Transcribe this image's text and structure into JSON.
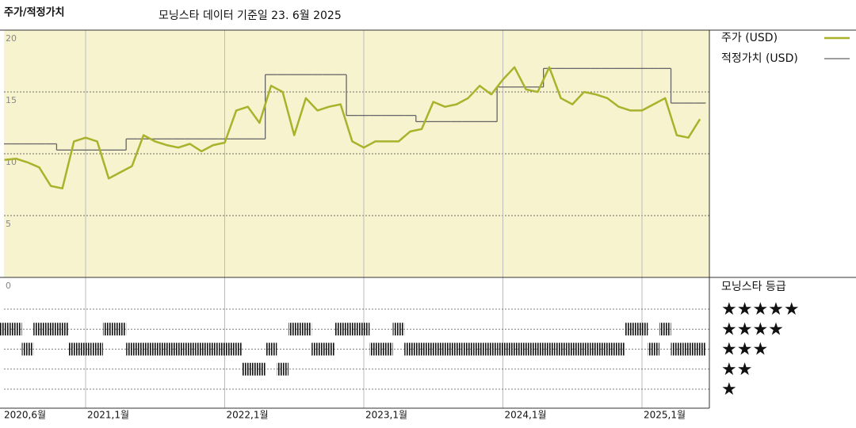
{
  "chart_data": {
    "type": "line",
    "title": "주가/적정가치",
    "subtitle": "모닝스타 데이터 기준일 23. 6월 2025",
    "categories": [
      "2020-06",
      "2020-07",
      "2020-08",
      "2020-09",
      "2020-10",
      "2020-11",
      "2020-12",
      "2021-01",
      "2021-02",
      "2021-03",
      "2021-04",
      "2021-05",
      "2021-06",
      "2021-07",
      "2021-08",
      "2021-09",
      "2021-10",
      "2021-11",
      "2021-12",
      "2022-01",
      "2022-02",
      "2022-03",
      "2022-04",
      "2022-05",
      "2022-06",
      "2022-07",
      "2022-08",
      "2022-09",
      "2022-10",
      "2022-11",
      "2022-12",
      "2023-01",
      "2023-02",
      "2023-03",
      "2023-04",
      "2023-05",
      "2023-06",
      "2023-07",
      "2023-08",
      "2023-09",
      "2023-10",
      "2023-11",
      "2023-12",
      "2024-01",
      "2024-02",
      "2024-03",
      "2024-04",
      "2024-05",
      "2024-06",
      "2024-07",
      "2024-08",
      "2024-09",
      "2024-10",
      "2024-11",
      "2024-12",
      "2025-01",
      "2025-02",
      "2025-03",
      "2025-04",
      "2025-05",
      "2025-06"
    ],
    "series": [
      {
        "name": "주가 (USD)",
        "color": "#a9b22a",
        "values": [
          9.5,
          9.6,
          9.3,
          8.9,
          7.4,
          7.2,
          11.0,
          11.3,
          11.0,
          8.0,
          8.5,
          9.0,
          11.5,
          11.0,
          10.7,
          10.5,
          10.8,
          10.2,
          10.7,
          10.9,
          13.5,
          13.8,
          12.5,
          15.5,
          15.0,
          11.5,
          14.5,
          13.5,
          13.8,
          14.0,
          11.0,
          10.5,
          11.0,
          11.0,
          11.0,
          11.8,
          12.0,
          14.2,
          13.8,
          14.0,
          14.5,
          15.5,
          14.8,
          16.0,
          17.0,
          15.2,
          15.0,
          17.0,
          14.5,
          14.0,
          15.0,
          14.8,
          14.5,
          13.8,
          13.5,
          13.5,
          14.0,
          14.5,
          11.5,
          11.3,
          12.8
        ]
      },
      {
        "name": "적정가치 (USD)",
        "color": "#666666",
        "step": true,
        "values": [
          10.8,
          10.8,
          10.8,
          10.8,
          10.8,
          10.3,
          10.3,
          10.3,
          10.3,
          10.3,
          10.3,
          11.2,
          11.2,
          11.2,
          11.2,
          11.2,
          11.2,
          11.2,
          11.2,
          11.2,
          11.2,
          11.2,
          11.2,
          16.4,
          16.4,
          16.4,
          16.4,
          16.4,
          16.4,
          16.4,
          13.1,
          13.1,
          13.1,
          13.1,
          13.1,
          13.1,
          12.6,
          12.6,
          12.6,
          12.6,
          12.6,
          12.6,
          12.6,
          15.4,
          15.4,
          15.4,
          15.4,
          16.9,
          16.9,
          16.9,
          16.9,
          16.9,
          16.9,
          16.9,
          16.9,
          16.9,
          16.9,
          16.9,
          14.1,
          14.1,
          14.1
        ]
      }
    ],
    "ylim": [
      0,
      20
    ],
    "yticks": [
      0,
      5,
      10,
      15,
      20
    ],
    "grid": true,
    "background": "#f7f3cf",
    "xticks": [
      {
        "value": "2020-06",
        "label": "2020,6월"
      },
      {
        "value": "2021-01",
        "label": "2021,1월"
      },
      {
        "value": "2022-01",
        "label": "2022,1월"
      },
      {
        "value": "2023-01",
        "label": "2023,1월"
      },
      {
        "value": "2024-01",
        "label": "2024,1월"
      },
      {
        "value": "2025-01",
        "label": "2025,1월"
      }
    ],
    "rating": {
      "title": "모닝스타 등급",
      "color": "#111111",
      "levels": [
        {
          "value": 5,
          "label": "★★★★★"
        },
        {
          "value": 4,
          "label": "★★★★"
        },
        {
          "value": 3,
          "label": "★★★"
        },
        {
          "value": 2,
          "label": "★★"
        },
        {
          "value": 1,
          "label": "★"
        }
      ],
      "values": [
        4,
        4,
        3,
        4,
        4,
        4,
        3,
        3,
        3,
        4,
        4,
        3,
        3,
        3,
        3,
        3,
        3,
        3,
        3,
        3,
        3,
        2,
        2,
        3,
        2,
        4,
        4,
        3,
        3,
        4,
        4,
        4,
        3,
        3,
        4,
        3,
        3,
        3,
        3,
        3,
        3,
        3,
        3,
        3,
        3,
        3,
        3,
        3,
        3,
        3,
        3,
        3,
        3,
        3,
        4,
        4,
        3,
        4,
        3,
        3,
        3
      ]
    }
  }
}
